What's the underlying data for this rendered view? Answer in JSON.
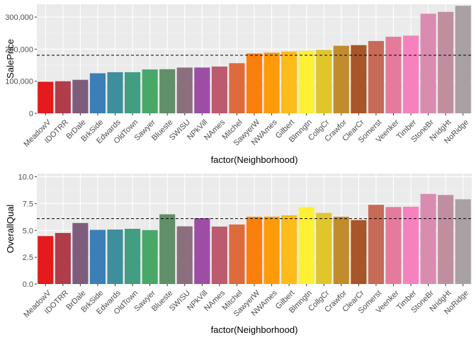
{
  "chart_data": [
    {
      "type": "bar",
      "xlabel": "factor(Neighborhood)",
      "ylabel": "SalePrice",
      "ylim": [
        0,
        340000
      ],
      "yticks": [
        0,
        100000,
        200000,
        300000
      ],
      "ytick_labels": [
        "0",
        "100,000",
        "200,000",
        "300,000"
      ],
      "reference_line": 180921,
      "categories": [
        "MeadowV",
        "IDOTRR",
        "BrDale",
        "BrkSide",
        "Edwards",
        "OldTown",
        "Sawyer",
        "Blueste",
        "SWISU",
        "NPkVill",
        "NAmes",
        "Mitchel",
        "SawyerW",
        "NWAmes",
        "Gilbert",
        "Blmngtn",
        "CollgCr",
        "Crawfor",
        "ClearCr",
        "Somerst",
        "Veenker",
        "Timber",
        "StoneBr",
        "NridgHt",
        "NoRidge"
      ],
      "values": [
        98576,
        100124,
        104494,
        124834,
        128220,
        128225,
        136793,
        137500,
        142592,
        142694,
        145847,
        156270,
        186556,
        189050,
        192855,
        194871,
        197966,
        210625,
        212565,
        225380,
        238773,
        242247,
        310499,
        316271,
        335295
      ],
      "grid": true
    },
    {
      "type": "bar",
      "xlabel": "factor(Neighborhood)",
      "ylabel": "OverallQual",
      "ylim": [
        0,
        10.3
      ],
      "yticks": [
        0,
        2.5,
        5,
        7.5,
        10
      ],
      "ytick_labels": [
        "0.0",
        "2.5",
        "5.0",
        "7.5",
        "10.0"
      ],
      "reference_line": 6.1,
      "categories": [
        "MeadowV",
        "IDOTRR",
        "BrDale",
        "BrkSide",
        "Edwards",
        "OldTown",
        "Sawyer",
        "Blueste",
        "SWISU",
        "NPkVill",
        "NAmes",
        "Mitchel",
        "SawyerW",
        "NWAmes",
        "Gilbert",
        "Blmngtn",
        "CollgCr",
        "Crawfor",
        "ClearCr",
        "Somerst",
        "Veenker",
        "Timber",
        "StoneBr",
        "NridgHt",
        "NoRidge"
      ],
      "values": [
        4.47,
        4.76,
        5.69,
        5.05,
        5.08,
        5.15,
        5.03,
        6.5,
        5.38,
        6.14,
        5.36,
        5.55,
        6.27,
        6.28,
        6.41,
        7.18,
        6.63,
        6.27,
        5.96,
        7.38,
        7.18,
        7.21,
        8.4,
        8.3,
        7.9
      ],
      "grid": true
    }
  ],
  "bar_colors": [
    "#e41a1c",
    "#b13c4b",
    "#7d5d7b",
    "#3b7fb6",
    "#3f8e9b",
    "#439d82",
    "#48a86a",
    "#618f67",
    "#8b6f7f",
    "#9c4ea4",
    "#bd5b6e",
    "#dd6b3c",
    "#fb7f0c",
    "#ff9b0a",
    "#ffbb17",
    "#fff033",
    "#e0c62b",
    "#c18d2c",
    "#a65628",
    "#c76a56",
    "#e57b9b",
    "#f781bf",
    "#d98cb0",
    "#c08f9f",
    "#a8a0a5"
  ]
}
